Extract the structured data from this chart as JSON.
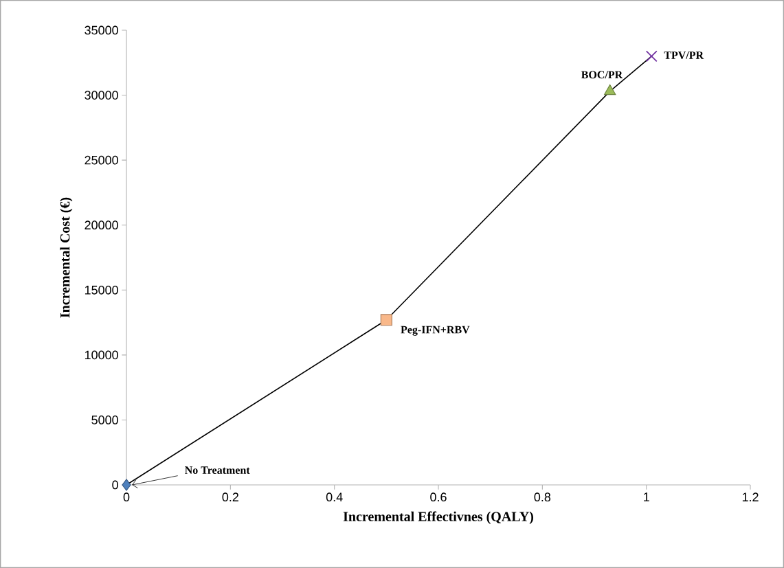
{
  "chart_data": {
    "type": "scatter",
    "xlabel": "Incremental Effectivnes (QALY)",
    "ylabel": "Incremental Cost (€)",
    "xlim": [
      0,
      1.2
    ],
    "xticks": [
      0,
      0.2,
      0.4,
      0.6,
      0.8,
      1,
      1.2
    ],
    "ylim": [
      0,
      35000
    ],
    "yticks": [
      0,
      5000,
      10000,
      15000,
      20000,
      25000,
      30000,
      35000
    ],
    "grid": false,
    "series": [
      {
        "type": "line",
        "color": "#000000",
        "marker": "none",
        "x": [
          0,
          0.5,
          0.93,
          1.01
        ],
        "values": [
          0,
          12700,
          30300,
          33000
        ]
      },
      {
        "color": "#4f81bd",
        "marker": "diamond",
        "x": [
          0
        ],
        "values": [
          0
        ]
      },
      {
        "color": "#f9b88a",
        "marker": "square",
        "x": [
          0.5
        ],
        "values": [
          12700
        ]
      },
      {
        "color": "#9bbb59",
        "marker": "triangle",
        "x": [
          0.93
        ],
        "values": [
          30300
        ]
      },
      {
        "color": "#7030a0",
        "marker": "cross",
        "x": [
          1.01
        ],
        "values": [
          33000
        ]
      }
    ],
    "annotations": [
      {
        "text": "No Treatment",
        "x": 0,
        "y": 0
      },
      {
        "text": "Peg-IFN+RBV",
        "x": 0.5,
        "y": 12700
      },
      {
        "text": "BOC/PR",
        "x": 0.93,
        "y": 30300
      },
      {
        "text": "TPV/PR",
        "x": 1.01,
        "y": 33000
      }
    ]
  }
}
